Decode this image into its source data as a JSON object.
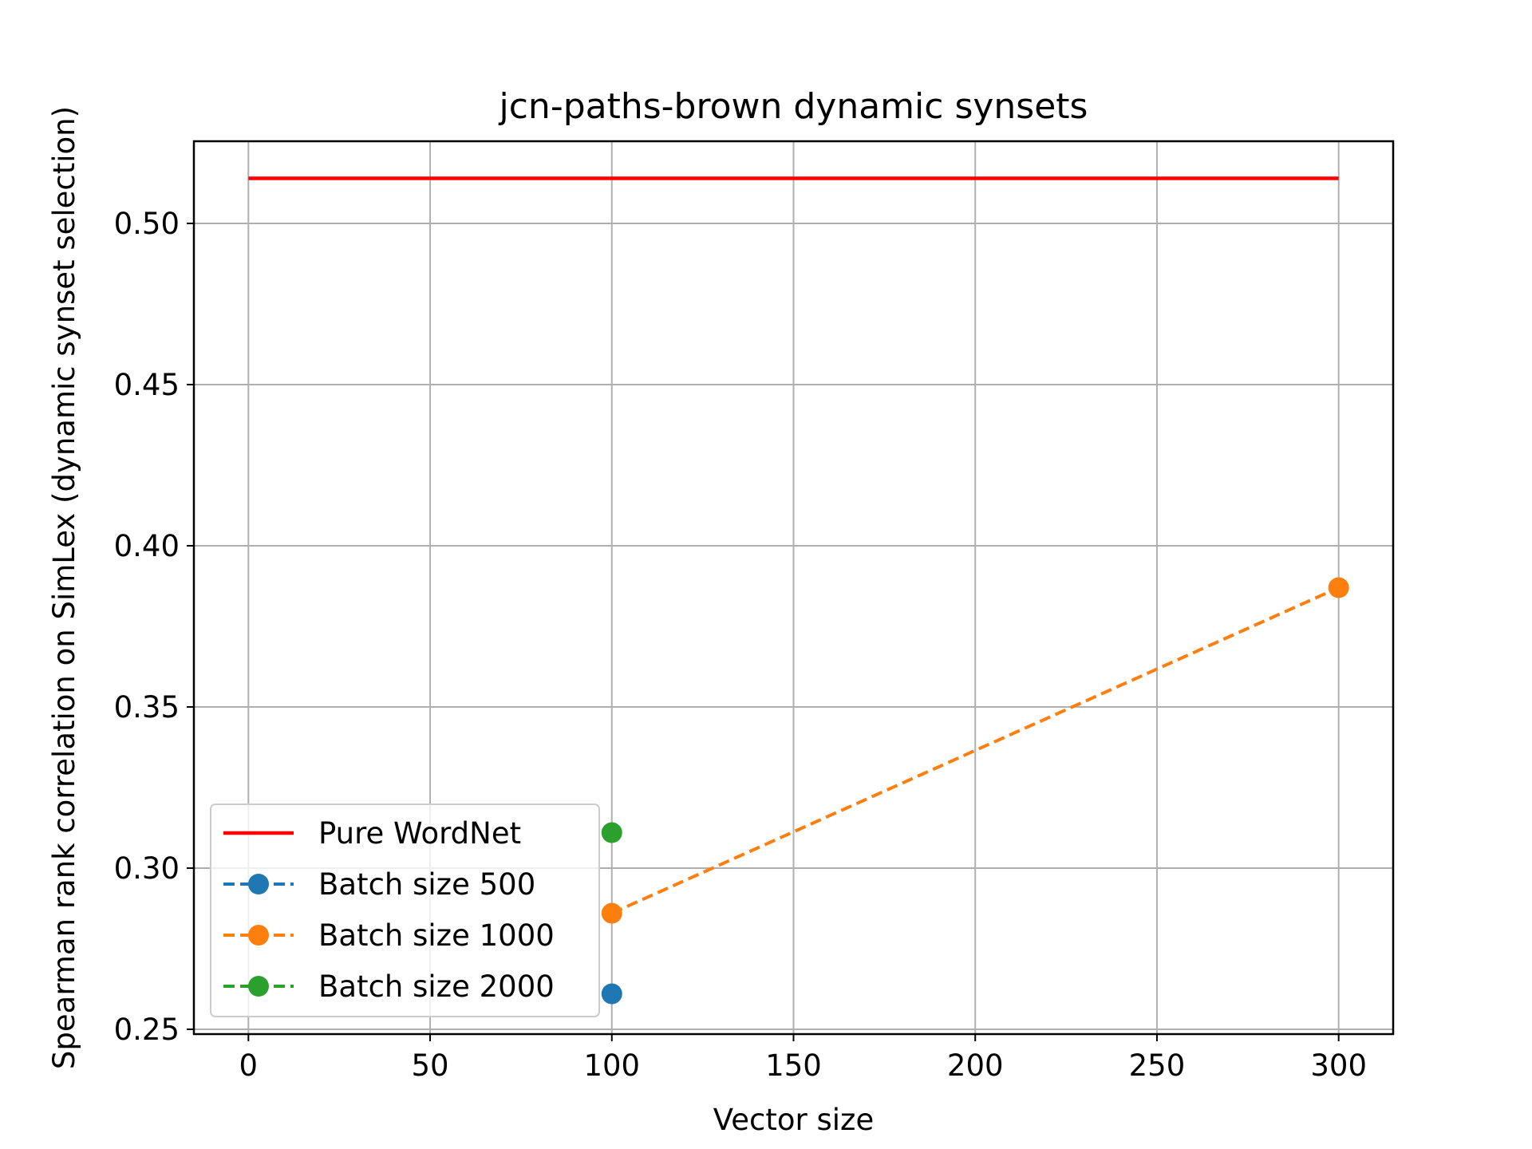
{
  "chart_data": {
    "type": "line",
    "title": "jcn-paths-brown dynamic synsets",
    "xlabel": "Vector size",
    "ylabel": "Spearman rank correlation on SimLex (dynamic synset selection)",
    "xlim": [
      -15,
      315
    ],
    "ylim": [
      0.2485,
      0.5255
    ],
    "x_ticks": [
      0,
      50,
      100,
      150,
      200,
      250,
      300
    ],
    "x_tick_labels": [
      "0",
      "50",
      "100",
      "150",
      "200",
      "250",
      "300"
    ],
    "y_ticks": [
      0.25,
      0.3,
      0.35,
      0.4,
      0.45,
      0.5
    ],
    "y_tick_labels": [
      "0.25",
      "0.30",
      "0.35",
      "0.40",
      "0.45",
      "0.50"
    ],
    "grid": true,
    "legend_position": "lower-left",
    "series": [
      {
        "name": "Pure WordNet",
        "color": "#ff0000",
        "style": "solid",
        "marker": "none",
        "x": [
          0,
          300
        ],
        "y": [
          0.514,
          0.514
        ]
      },
      {
        "name": "Batch size 500",
        "color": "#1f77b4",
        "style": "dashed",
        "marker": "circle",
        "x": [
          100
        ],
        "y": [
          0.261
        ]
      },
      {
        "name": "Batch size 1000",
        "color": "#ff7f0e",
        "style": "dashed",
        "marker": "circle",
        "x": [
          100,
          300
        ],
        "y": [
          0.286,
          0.387
        ]
      },
      {
        "name": "Batch size 2000",
        "color": "#2ca02c",
        "style": "dashed",
        "marker": "circle",
        "x": [
          100
        ],
        "y": [
          0.311
        ]
      }
    ]
  }
}
